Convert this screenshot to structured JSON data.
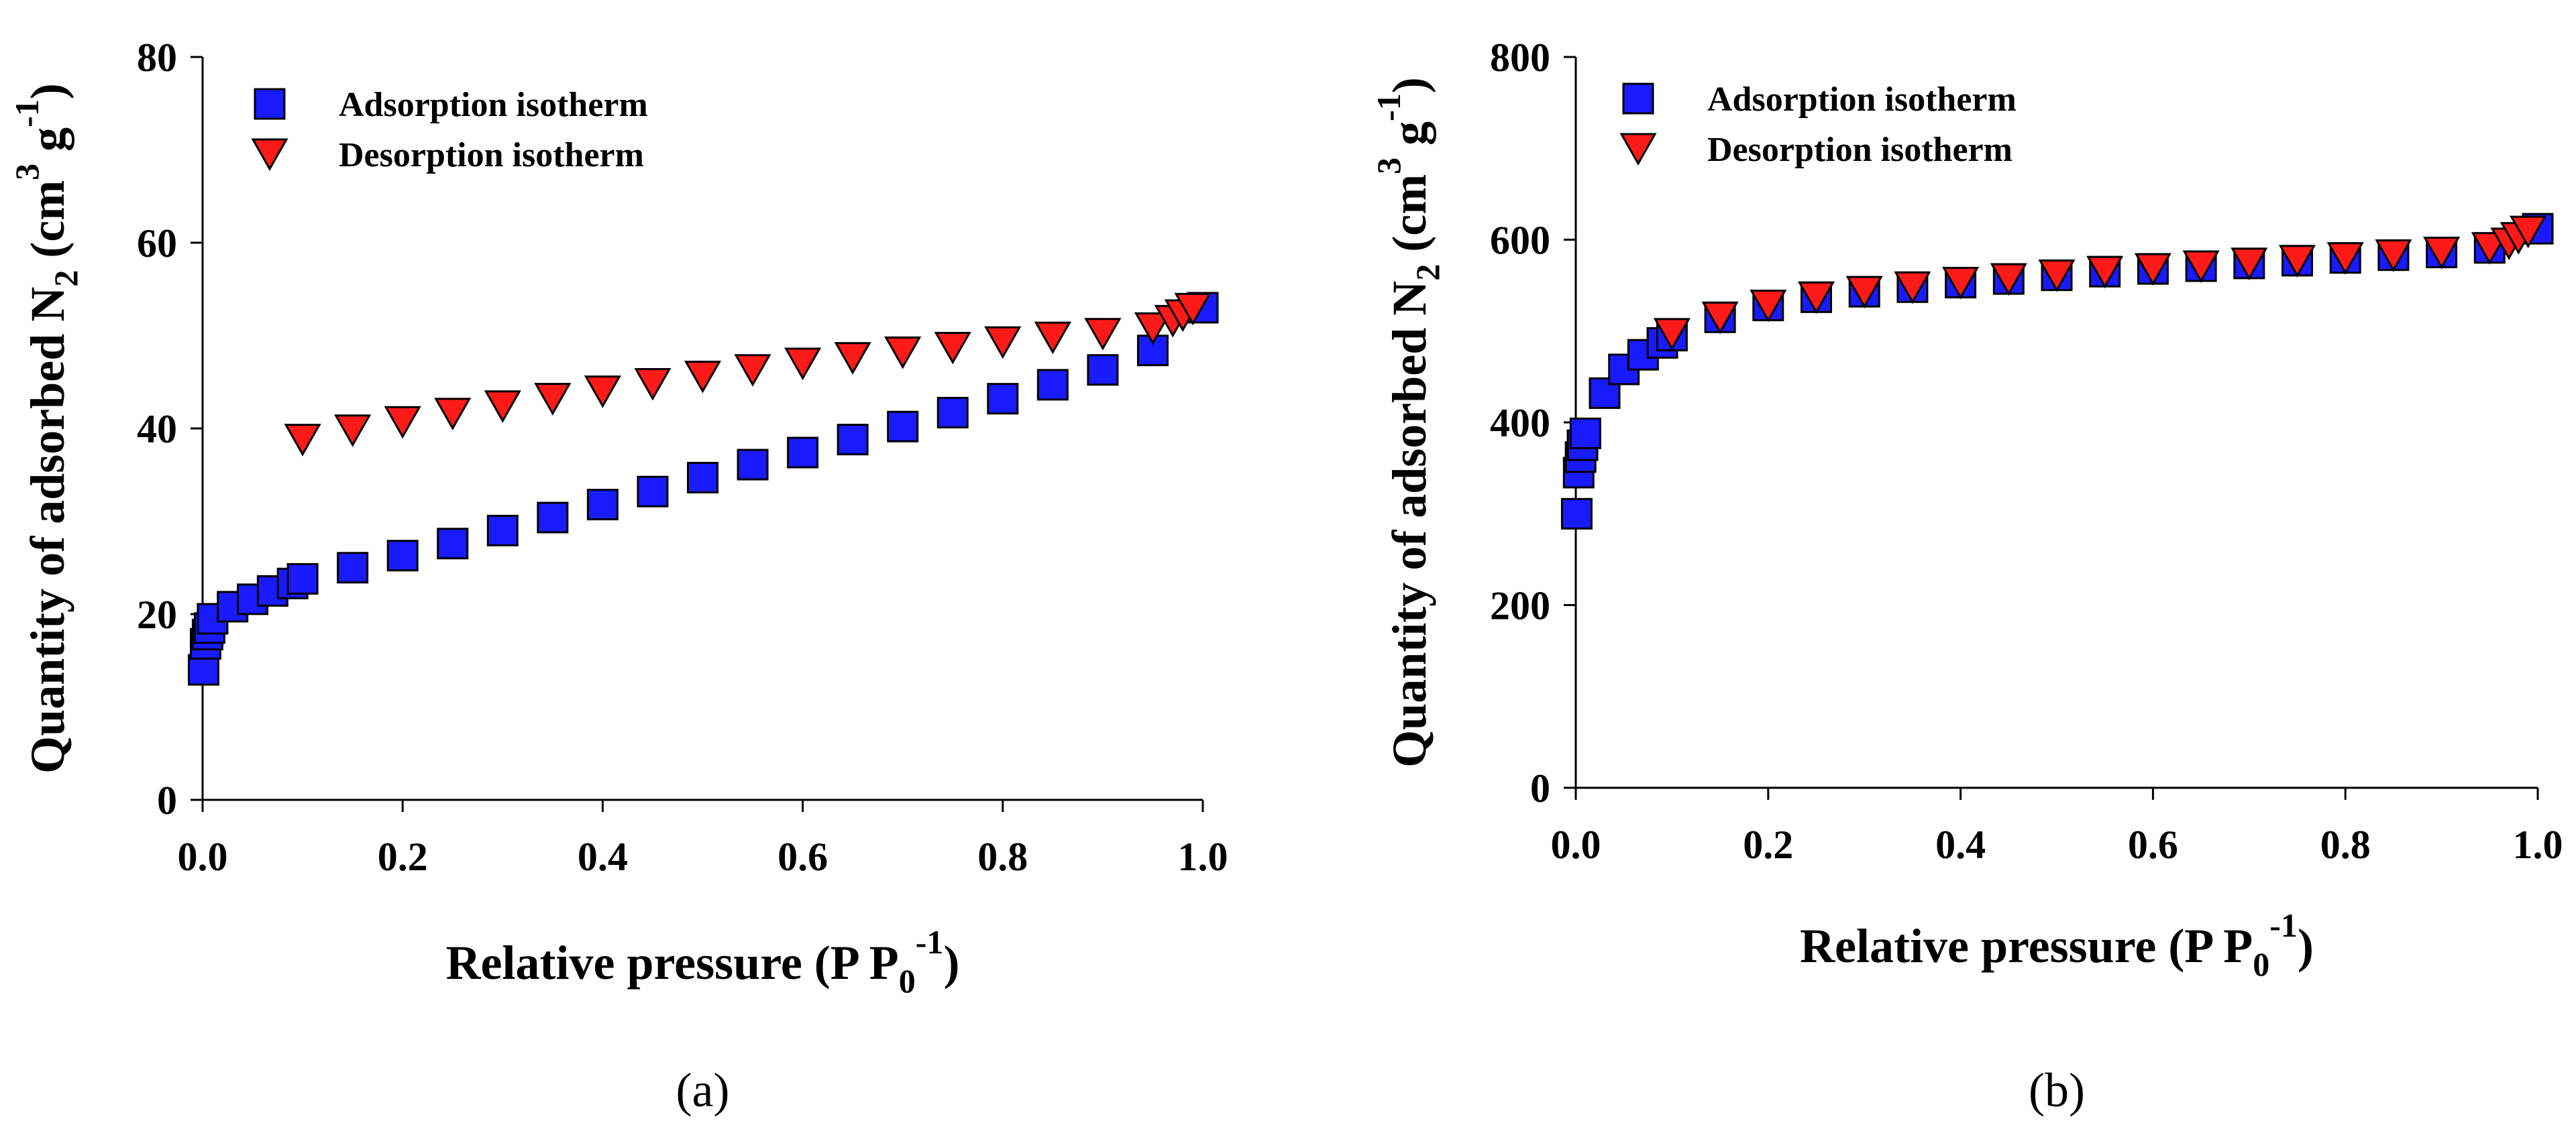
{
  "chart_data": [
    {
      "type": "scatter",
      "panel_label": "(a)",
      "xlabel": "Relative pressure (P P0-1)",
      "xlabel_parts": {
        "main": "Relative pressure (P P",
        "sub": "0",
        "sup": "-1",
        "close": ")"
      },
      "ylabel": "Quantity of adsorbed N2 (cm3 g-1)",
      "ylabel_parts": {
        "a": "Quantity of adsorbed N",
        "sub": "2",
        "b": " (cm",
        "sup1": "3",
        "c": " g",
        "sup2": "-1",
        "d": ")"
      },
      "xlim": [
        0,
        1.0
      ],
      "ylim": [
        0,
        80
      ],
      "xticks": [
        "0.0",
        "0.2",
        "0.4",
        "0.6",
        "0.8",
        "1.0"
      ],
      "yticks": [
        "0",
        "20",
        "40",
        "60",
        "80"
      ],
      "legend_position": "top-left",
      "series": [
        {
          "name": "Adsorption isotherm",
          "marker": "square",
          "color": "#1a1aff",
          "x": [
            0.001,
            0.003,
            0.005,
            0.007,
            0.01,
            0.03,
            0.05,
            0.07,
            0.09,
            0.1,
            0.15,
            0.2,
            0.25,
            0.3,
            0.35,
            0.4,
            0.45,
            0.5,
            0.55,
            0.6,
            0.65,
            0.7,
            0.75,
            0.8,
            0.85,
            0.9,
            0.95,
            1.0
          ],
          "y": [
            14.0,
            16.8,
            17.8,
            18.5,
            19.5,
            20.8,
            21.6,
            22.5,
            23.3,
            23.8,
            25.0,
            26.3,
            27.6,
            29.0,
            30.4,
            31.8,
            33.2,
            34.7,
            36.1,
            37.4,
            38.8,
            40.2,
            41.7,
            43.2,
            44.7,
            46.3,
            48.4,
            53.0
          ]
        },
        {
          "name": "Desorption isotherm",
          "marker": "triangle-down",
          "color": "#ff1a1a",
          "x": [
            0.1,
            0.15,
            0.2,
            0.25,
            0.3,
            0.35,
            0.4,
            0.45,
            0.5,
            0.55,
            0.6,
            0.65,
            0.7,
            0.75,
            0.8,
            0.85,
            0.9,
            0.95,
            0.97,
            0.98,
            0.99
          ],
          "y": [
            38.8,
            39.8,
            40.7,
            41.6,
            42.4,
            43.2,
            44.0,
            44.8,
            45.6,
            46.3,
            47.0,
            47.6,
            48.2,
            48.7,
            49.3,
            49.8,
            50.2,
            50.8,
            51.6,
            52.2,
            52.9
          ]
        }
      ]
    },
    {
      "type": "scatter",
      "panel_label": "(b)",
      "xlabel": "Relative pressure (P P0-1)",
      "xlabel_parts": {
        "main": "Relative pressure (P P",
        "sub": "0",
        "sup": "-1",
        "close": ")"
      },
      "ylabel": "Quantity of adsorbed N2 (cm3 g-1)",
      "ylabel_parts": {
        "a": "Quantity of adsorbed N",
        "sub": "2",
        "b": " (cm",
        "sup1": "3",
        "c": " g",
        "sup2": "-1",
        "d": ")"
      },
      "xlim": [
        0,
        1.0
      ],
      "ylim": [
        0,
        800
      ],
      "xticks": [
        "0.0",
        "0.2",
        "0.4",
        "0.6",
        "0.8",
        "1.0"
      ],
      "yticks": [
        "0",
        "200",
        "400",
        "600",
        "800"
      ],
      "legend_position": "top-left",
      "series": [
        {
          "name": "Adsorption isotherm",
          "marker": "square",
          "color": "#1a1aff",
          "x": [
            0.001,
            0.003,
            0.005,
            0.007,
            0.01,
            0.03,
            0.05,
            0.07,
            0.09,
            0.1,
            0.15,
            0.2,
            0.25,
            0.3,
            0.35,
            0.4,
            0.45,
            0.5,
            0.55,
            0.6,
            0.65,
            0.7,
            0.75,
            0.8,
            0.85,
            0.9,
            0.95,
            1.0
          ],
          "y": [
            300,
            345,
            362,
            375,
            388,
            432,
            458,
            474,
            487,
            495,
            515,
            528,
            537,
            543,
            548,
            553,
            557,
            561,
            565,
            568,
            571,
            574,
            577,
            580,
            583,
            586,
            591,
            612
          ]
        },
        {
          "name": "Desorption isotherm",
          "marker": "triangle-down",
          "color": "#ff1a1a",
          "x": [
            0.1,
            0.15,
            0.2,
            0.25,
            0.3,
            0.35,
            0.4,
            0.45,
            0.5,
            0.55,
            0.6,
            0.65,
            0.7,
            0.75,
            0.8,
            0.85,
            0.9,
            0.95,
            0.97,
            0.98,
            0.99
          ],
          "y": [
            497,
            515,
            528,
            537,
            543,
            548,
            553,
            557,
            561,
            565,
            568,
            571,
            574,
            577,
            580,
            583,
            586,
            591,
            596,
            602,
            609
          ]
        }
      ]
    }
  ]
}
